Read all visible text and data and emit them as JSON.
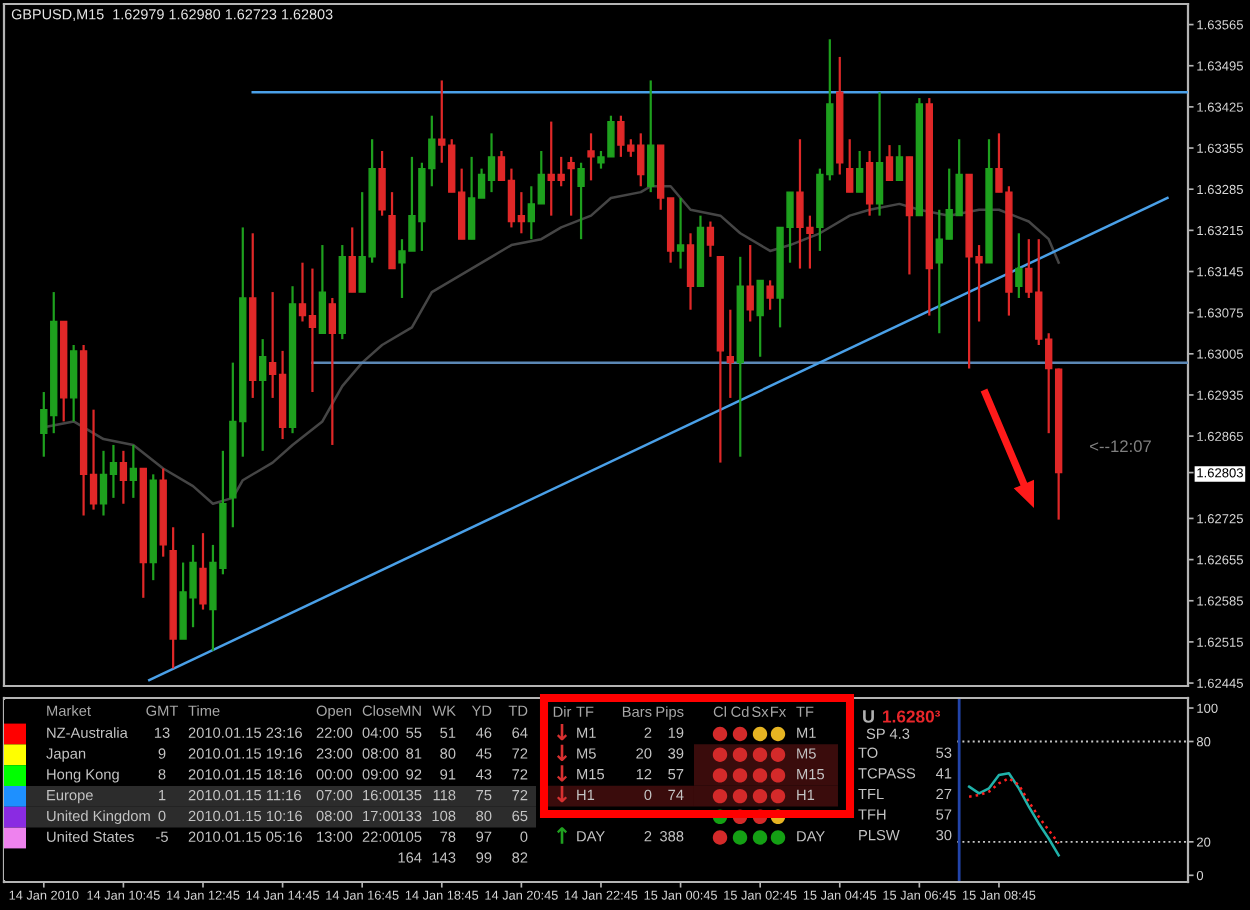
{
  "chart_data": [
    {
      "type": "candlestick",
      "title": "GBPUSD,M15  1.62979 1.62980 1.62723 1.62803",
      "x": [
        "2010-01-14T08:45",
        "2010-01-14T09:00",
        "2010-01-14T09:15",
        "2010-01-14T09:30",
        "2010-01-14T09:45",
        "2010-01-14T10:00",
        "2010-01-14T10:15",
        "2010-01-14T10:30",
        "2010-01-14T10:45",
        "2010-01-14T11:00",
        "2010-01-14T11:15",
        "2010-01-14T11:30",
        "2010-01-14T11:45",
        "2010-01-14T12:00",
        "2010-01-14T12:15",
        "2010-01-14T12:30",
        "2010-01-14T12:45",
        "2010-01-14T13:00",
        "2010-01-14T13:15",
        "2010-01-14T13:30",
        "2010-01-14T13:45",
        "2010-01-14T14:00",
        "2010-01-14T14:15",
        "2010-01-14T14:30",
        "2010-01-14T14:45",
        "2010-01-14T15:00",
        "2010-01-14T15:15",
        "2010-01-14T15:30",
        "2010-01-14T15:45",
        "2010-01-14T16:00",
        "2010-01-14T16:15",
        "2010-01-14T16:30",
        "2010-01-14T16:45",
        "2010-01-14T17:00",
        "2010-01-14T17:15",
        "2010-01-14T17:30",
        "2010-01-14T17:45",
        "2010-01-14T18:00",
        "2010-01-14T18:15",
        "2010-01-14T18:30",
        "2010-01-14T18:45",
        "2010-01-14T19:00",
        "2010-01-14T19:15",
        "2010-01-14T19:30",
        "2010-01-14T19:45",
        "2010-01-14T20:00",
        "2010-01-14T20:15",
        "2010-01-14T20:30",
        "2010-01-14T20:45",
        "2010-01-14T21:00",
        "2010-01-14T21:15",
        "2010-01-14T21:30",
        "2010-01-14T21:45",
        "2010-01-14T22:00",
        "2010-01-14T22:15",
        "2010-01-14T22:30",
        "2010-01-14T22:45",
        "2010-01-14T23:00",
        "2010-01-14T23:15",
        "2010-01-14T23:30",
        "2010-01-14T23:45",
        "2010-01-15T00:00",
        "2010-01-15T00:15",
        "2010-01-15T00:30",
        "2010-01-15T00:45",
        "2010-01-15T01:00",
        "2010-01-15T01:15",
        "2010-01-15T01:30",
        "2010-01-15T01:45",
        "2010-01-15T02:00",
        "2010-01-15T02:15",
        "2010-01-15T02:30",
        "2010-01-15T02:45",
        "2010-01-15T03:00",
        "2010-01-15T03:15",
        "2010-01-15T03:30",
        "2010-01-15T03:45",
        "2010-01-15T04:00",
        "2010-01-15T04:15",
        "2010-01-15T04:30",
        "2010-01-15T04:45",
        "2010-01-15T05:00",
        "2010-01-15T05:15",
        "2010-01-15T05:30",
        "2010-01-15T05:45",
        "2010-01-15T06:00",
        "2010-01-15T06:15",
        "2010-01-15T06:30",
        "2010-01-15T06:45",
        "2010-01-15T07:00",
        "2010-01-15T07:15",
        "2010-01-15T07:30",
        "2010-01-15T07:45",
        "2010-01-15T08:00",
        "2010-01-15T08:15",
        "2010-01-15T08:30",
        "2010-01-15T08:45",
        "2010-01-15T09:00",
        "2010-01-15T09:15",
        "2010-01-15T09:30",
        "2010-01-15T09:45",
        "2010-01-15T10:00",
        "2010-01-15T10:15"
      ],
      "ohlc": [
        [
          1.6287,
          1.6294,
          1.6283,
          1.6291
        ],
        [
          1.629,
          1.6311,
          1.6287,
          1.6306
        ],
        [
          1.6306,
          1.6306,
          1.6289,
          1.6293
        ],
        [
          1.6293,
          1.6302,
          1.6289,
          1.6301
        ],
        [
          1.6301,
          1.6302,
          1.6273,
          1.628
        ],
        [
          1.628,
          1.6291,
          1.6274,
          1.6275
        ],
        [
          1.6275,
          1.6284,
          1.6273,
          1.628
        ],
        [
          1.628,
          1.6285,
          1.6276,
          1.6282
        ],
        [
          1.6282,
          1.6284,
          1.6275,
          1.6279
        ],
        [
          1.6279,
          1.6285,
          1.6276,
          1.6281
        ],
        [
          1.6281,
          1.6281,
          1.6259,
          1.6265
        ],
        [
          1.6265,
          1.628,
          1.6262,
          1.6279
        ],
        [
          1.6279,
          1.6281,
          1.6266,
          1.6268
        ],
        [
          1.6267,
          1.6271,
          1.6247,
          1.6252
        ],
        [
          1.6252,
          1.6265,
          1.6252,
          1.626
        ],
        [
          1.6259,
          1.6268,
          1.6254,
          1.6265
        ],
        [
          1.6264,
          1.627,
          1.6257,
          1.6258
        ],
        [
          1.6257,
          1.6268,
          1.625,
          1.6265
        ],
        [
          1.6264,
          1.6284,
          1.6263,
          1.6275
        ],
        [
          1.6276,
          1.6299,
          1.6271,
          1.6289
        ],
        [
          1.6289,
          1.6322,
          1.6283,
          1.631
        ],
        [
          1.631,
          1.6321,
          1.6293,
          1.6296
        ],
        [
          1.6296,
          1.6303,
          1.6284,
          1.63
        ],
        [
          1.6299,
          1.6311,
          1.6293,
          1.6297
        ],
        [
          1.6297,
          1.6301,
          1.6286,
          1.6288
        ],
        [
          1.6288,
          1.6312,
          1.6287,
          1.6309
        ],
        [
          1.6309,
          1.6316,
          1.6306,
          1.6307
        ],
        [
          1.6307,
          1.6315,
          1.6294,
          1.6305
        ],
        [
          1.6304,
          1.6319,
          1.6304,
          1.6311
        ],
        [
          1.6309,
          1.631,
          1.6285,
          1.6304
        ],
        [
          1.6304,
          1.6319,
          1.6303,
          1.6317
        ],
        [
          1.6317,
          1.6322,
          1.6311,
          1.6311
        ],
        [
          1.6311,
          1.6328,
          1.6311,
          1.6317
        ],
        [
          1.6317,
          1.6337,
          1.6316,
          1.6332
        ],
        [
          1.6332,
          1.6335,
          1.6324,
          1.6325
        ],
        [
          1.6324,
          1.6328,
          1.6315,
          1.6315
        ],
        [
          1.6316,
          1.632,
          1.631,
          1.6318
        ],
        [
          1.6318,
          1.6334,
          1.6318,
          1.6324
        ],
        [
          1.6323,
          1.6333,
          1.6318,
          1.6332
        ],
        [
          1.6332,
          1.6341,
          1.6329,
          1.6337
        ],
        [
          1.6337,
          1.6347,
          1.6333,
          1.6336
        ],
        [
          1.6336,
          1.6337,
          1.6328,
          1.6328
        ],
        [
          1.6328,
          1.6332,
          1.632,
          1.632
        ],
        [
          1.632,
          1.6334,
          1.632,
          1.6327
        ],
        [
          1.6327,
          1.6332,
          1.6327,
          1.6331
        ],
        [
          1.633,
          1.6338,
          1.6328,
          1.6334
        ],
        [
          1.6334,
          1.6335,
          1.633,
          1.633
        ],
        [
          1.633,
          1.6332,
          1.6322,
          1.6323
        ],
        [
          1.6324,
          1.6328,
          1.6321,
          1.6323
        ],
        [
          1.6323,
          1.6329,
          1.632,
          1.6326
        ],
        [
          1.6326,
          1.6335,
          1.6326,
          1.6331
        ],
        [
          1.6331,
          1.634,
          1.6324,
          1.633
        ],
        [
          1.6331,
          1.6334,
          1.6329,
          1.633
        ],
        [
          1.6333,
          1.6334,
          1.6324,
          1.6332
        ],
        [
          1.6329,
          1.6333,
          1.632,
          1.6332
        ],
        [
          1.6335,
          1.6338,
          1.633,
          1.6334
        ],
        [
          1.6333,
          1.6335,
          1.6332,
          1.6334
        ],
        [
          1.6334,
          1.6341,
          1.6334,
          1.634
        ],
        [
          1.634,
          1.6341,
          1.6334,
          1.6336
        ],
        [
          1.6336,
          1.6337,
          1.6334,
          1.6335
        ],
        [
          1.6336,
          1.6338,
          1.6329,
          1.6331
        ],
        [
          1.6329,
          1.6347,
          1.6328,
          1.6336
        ],
        [
          1.6336,
          1.6336,
          1.6325,
          1.6327
        ],
        [
          1.6327,
          1.6327,
          1.6316,
          1.6318
        ],
        [
          1.6318,
          1.6327,
          1.6315,
          1.6319
        ],
        [
          1.6319,
          1.6321,
          1.6308,
          1.6312
        ],
        [
          1.6312,
          1.6324,
          1.6312,
          1.6322
        ],
        [
          1.6322,
          1.6323,
          1.6317,
          1.6319
        ],
        [
          1.6317,
          1.6317,
          1.6282,
          1.6301
        ],
        [
          1.63,
          1.6308,
          1.6293,
          1.6299
        ],
        [
          1.6299,
          1.6317,
          1.6283,
          1.6312
        ],
        [
          1.6312,
          1.6319,
          1.6306,
          1.6308
        ],
        [
          1.6307,
          1.6313,
          1.63,
          1.6313
        ],
        [
          1.6312,
          1.6313,
          1.6308,
          1.631
        ],
        [
          1.631,
          1.6322,
          1.6305,
          1.6322
        ],
        [
          1.6322,
          1.6328,
          1.6316,
          1.6328
        ],
        [
          1.6328,
          1.6337,
          1.6315,
          1.6322
        ],
        [
          1.6322,
          1.6324,
          1.6315,
          1.6321
        ],
        [
          1.6322,
          1.6332,
          1.6318,
          1.6331
        ],
        [
          1.6331,
          1.6354,
          1.633,
          1.6343
        ],
        [
          1.6345,
          1.6351,
          1.6331,
          1.6333
        ],
        [
          1.6332,
          1.6337,
          1.6328,
          1.6328
        ],
        [
          1.6328,
          1.6335,
          1.6328,
          1.6332
        ],
        [
          1.6333,
          1.6335,
          1.6324,
          1.6326
        ],
        [
          1.6326,
          1.6345,
          1.6324,
          1.6333
        ],
        [
          1.6334,
          1.6336,
          1.633,
          1.633
        ],
        [
          1.633,
          1.6336,
          1.633,
          1.6334
        ],
        [
          1.6334,
          1.6334,
          1.6314,
          1.6324
        ],
        [
          1.6324,
          1.6344,
          1.6324,
          1.6343
        ],
        [
          1.6343,
          1.6344,
          1.6307,
          1.6315
        ],
        [
          1.6316,
          1.6325,
          1.6304,
          1.632
        ],
        [
          1.632,
          1.6332,
          1.632,
          1.6325
        ],
        [
          1.6324,
          1.6337,
          1.6324,
          1.6331
        ],
        [
          1.6331,
          1.6331,
          1.6298,
          1.6317
        ],
        [
          1.6317,
          1.6319,
          1.6306,
          1.6316
        ],
        [
          1.6316,
          1.6337,
          1.6316,
          1.6332
        ],
        [
          1.6332,
          1.6338,
          1.6328,
          1.6328
        ],
        [
          1.6328,
          1.6329,
          1.6307,
          1.6311
        ],
        [
          1.6312,
          1.6321,
          1.631,
          1.6315
        ],
        [
          1.6315,
          1.632,
          1.631,
          1.6311
        ],
        [
          1.6311,
          1.632,
          1.6302,
          1.6303
        ],
        [
          1.6303,
          1.6304,
          1.6287,
          1.6298
        ],
        [
          1.62979,
          1.6298,
          1.62723,
          1.62803
        ]
      ],
      "colors": [
        "#1ea01e",
        "#1ea01e",
        "#e02828",
        "#1ea01e",
        "#e02828",
        "#e02828",
        "#1ea01e",
        "#1ea01e",
        "#e02828",
        "#1ea01e",
        "#e02828",
        "#1ea01e",
        "#e02828",
        "#e02828",
        "#1ea01e",
        "#1ea01e",
        "#e02828",
        "#1ea01e",
        "#1ea01e",
        "#1ea01e",
        "#1ea01e",
        "#e02828",
        "#1ea01e",
        "#e02828",
        "#e02828",
        "#1ea01e",
        "#e02828",
        "#e02828",
        "#1ea01e",
        "#e02828",
        "#1ea01e",
        "#e02828",
        "#1ea01e",
        "#1ea01e",
        "#e02828",
        "#e02828",
        "#1ea01e",
        "#1ea01e",
        "#1ea01e",
        "#1ea01e",
        "#e02828",
        "#e02828",
        "#e02828",
        "#1ea01e",
        "#1ea01e",
        "#1ea01e",
        "#e02828",
        "#e02828",
        "#e02828",
        "#1ea01e",
        "#1ea01e",
        "#e02828",
        "#e02828",
        "#e02828",
        "#1ea01e",
        "#e02828",
        "#1ea01e",
        "#1ea01e",
        "#e02828",
        "#e02828",
        "#e02828",
        "#1ea01e",
        "#e02828",
        "#e02828",
        "#1ea01e",
        "#e02828",
        "#1ea01e",
        "#e02828",
        "#e02828",
        "#e02828",
        "#1ea01e",
        "#e02828",
        "#1ea01e",
        "#e02828",
        "#1ea01e",
        "#1ea01e",
        "#e02828",
        "#e02828",
        "#1ea01e",
        "#1ea01e",
        "#e02828",
        "#e02828",
        "#1ea01e",
        "#e02828",
        "#1ea01e",
        "#e02828",
        "#1ea01e",
        "#e02828",
        "#1ea01e",
        "#e02828",
        "#1ea01e",
        "#1ea01e",
        "#1ea01e",
        "#e02828",
        "#e02828",
        "#1ea01e",
        "#e02828",
        "#e02828",
        "#1ea01e",
        "#e02828",
        "#e02828",
        "#e02828",
        "#e02828"
      ],
      "series": [
        {
          "type": "line",
          "color": "#454545",
          "x": [
            "2010-01-14T08:45",
            "2010-01-14T09:30",
            "2010-01-14T10:15",
            "2010-01-14T11:00",
            "2010-01-14T11:45",
            "2010-01-14T12:30",
            "2010-01-14T13:00",
            "2010-01-14T13:30",
            "2010-01-14T13:45",
            "2010-01-14T14:30",
            "2010-01-14T15:00",
            "2010-01-14T15:45",
            "2010-01-14T16:15",
            "2010-01-14T16:45",
            "2010-01-14T17:15",
            "2010-01-14T18:00",
            "2010-01-14T18:30",
            "2010-01-14T19:00",
            "2010-01-14T19:30",
            "2010-01-14T20:00",
            "2010-01-14T20:30",
            "2010-01-14T21:15",
            "2010-01-14T21:45",
            "2010-01-14T22:30",
            "2010-01-14T23:00",
            "2010-01-14T23:45",
            "2010-01-15T00:00",
            "2010-01-15T00:30",
            "2010-01-15T01:00",
            "2010-01-15T01:45",
            "2010-01-15T02:15",
            "2010-01-15T03:00",
            "2010-01-15T03:30",
            "2010-01-15T04:15",
            "2010-01-15T05:00",
            "2010-01-15T05:30",
            "2010-01-15T06:15",
            "2010-01-15T06:45",
            "2010-01-15T07:30",
            "2010-01-15T08:15",
            "2010-01-15T08:45",
            "2010-01-15T09:30",
            "2010-01-15T10:00",
            "2010-01-15T10:15"
          ],
          "values": [
            1.6288,
            1.6289,
            1.6286,
            1.6285,
            1.6281,
            1.6278,
            1.6275,
            1.6276,
            1.6279,
            1.6282,
            1.6285,
            1.6289,
            1.6295,
            1.6299,
            1.6302,
            1.6305,
            1.6311,
            1.6313,
            1.6315,
            1.6317,
            1.6319,
            1.632,
            1.6322,
            1.6324,
            1.6327,
            1.6328,
            1.6329,
            1.6329,
            1.6325,
            1.6324,
            1.6321,
            1.6318,
            1.6319,
            1.6321,
            1.6324,
            1.6325,
            1.6326,
            1.6325,
            1.6324,
            1.6325,
            1.6325,
            1.6323,
            1.632,
            1.6316
          ]
        },
        {
          "type": "line",
          "color": "#4aa0e8",
          "x": [
            "2010-01-14T14:00",
            "2010-01-15T13:30"
          ],
          "values": [
            1.6345,
            1.6345
          ]
        },
        {
          "type": "line",
          "color": "#5b87b5",
          "x": [
            "2010-01-14T15:30",
            "2010-01-15T13:30"
          ],
          "values": [
            1.6299,
            1.6299
          ]
        },
        {
          "type": "line",
          "color": "#4aa0e8",
          "x": [
            "2010-01-14T11:24",
            "2010-01-15T12:59"
          ],
          "values": [
            1.6245,
            1.6327
          ]
        }
      ],
      "xlim": [
        "2010-01-14T07:45",
        "2010-01-15T13:30"
      ],
      "ylim": [
        1.6244,
        1.636
      ],
      "yticks": [
        1.63565,
        1.63495,
        1.63425,
        1.63355,
        1.63285,
        1.63215,
        1.63145,
        1.63075,
        1.63005,
        1.62935,
        1.62865,
        1.62803,
        1.62725,
        1.62655,
        1.62585,
        1.62515,
        1.62445
      ],
      "annotations": [
        "<--12:07"
      ],
      "tick_labels": "y"
    },
    {
      "type": "other",
      "categories": [
        "Market",
        "GMT",
        "Time",
        "Open",
        "Close",
        "MN",
        "WK",
        "YD",
        "TD"
      ],
      "y_categories": [
        "NZ-Australia",
        "Japan",
        "Hong Kong",
        "Europe",
        "United Kingdom",
        "United States",
        null
      ],
      "cell_labels": [
        [
          "13",
          "2010.01.15 23:16",
          "22:00",
          "04:00",
          "55",
          "51",
          "46",
          "64"
        ],
        [
          "9",
          "2010.01.15 19:16",
          "23:00",
          "08:00",
          "81",
          "80",
          "45",
          "72"
        ],
        [
          "8",
          "2010.01.15 18:16",
          "00:00",
          "09:00",
          "92",
          "91",
          "43",
          "72"
        ],
        [
          "1",
          "2010.01.15 11:16",
          "07:00",
          "16:00",
          "135",
          "118",
          "75",
          "72"
        ],
        [
          "0",
          "2010.01.15 10:16",
          "08:00",
          "17:00",
          "133",
          "108",
          "80",
          "65"
        ],
        [
          "-5",
          "2010.01.15 05:16",
          "13:00",
          "22:00",
          "105",
          "78",
          "97",
          "0"
        ],
        [
          null,
          null,
          null,
          null,
          "164",
          "143",
          "99",
          "82"
        ]
      ],
      "colors": [
        [
          "#ff0000",
          null
        ],
        [
          "#ffff00",
          null
        ],
        [
          "#00ff00",
          null
        ],
        [
          "#1e90ff",
          "#2c2c2c"
        ],
        [
          "#8a2be2",
          "#2c2c2c"
        ],
        [
          "#ee82ee",
          null
        ],
        [
          null,
          null
        ]
      ]
    },
    {
      "type": "other",
      "categories": [
        "Dir",
        "TF",
        "Bars",
        "Pips",
        "Cl",
        "Cd",
        "Sx",
        "Fx",
        "TF"
      ],
      "y_categories": [
        "M1",
        "M5",
        "M15",
        "H1",
        null,
        "DAY"
      ],
      "cell_labels": [
        [
          "↓",
          "2",
          "19",
          null,
          null,
          null,
          null,
          "M1"
        ],
        [
          "↓",
          "20",
          "39",
          null,
          null,
          null,
          null,
          "M5"
        ],
        [
          "↓",
          "12",
          "57",
          null,
          null,
          null,
          null,
          "M15"
        ],
        [
          "↓",
          "0",
          "74",
          null,
          null,
          null,
          null,
          "H1"
        ],
        [
          null,
          null,
          null,
          null,
          null,
          null,
          null,
          null
        ],
        [
          "↑",
          "2",
          "388",
          null,
          null,
          null,
          null,
          "DAY"
        ]
      ],
      "colors": [
        [
          null,
          null,
          "#d83030",
          null,
          null,
          "#d42a2a",
          "#d42a2a",
          "#e6b422",
          "#e6b422",
          null
        ],
        [
          null,
          "#3a0c0c",
          "#d83030",
          null,
          null,
          "#d42a2a",
          "#d42a2a",
          "#d42a2a",
          "#d42a2a",
          null
        ],
        [
          null,
          "#3a0c0c",
          "#d83030",
          null,
          null,
          "#d42a2a",
          "#d42a2a",
          "#d42a2a",
          "#d42a2a",
          null
        ],
        [
          "#3a0c0c",
          "#3a0c0c",
          "#d83030",
          null,
          null,
          "#d42a2a",
          "#d42a2a",
          "#d42a2a",
          "#d42a2a",
          null
        ],
        [
          null,
          null,
          null,
          null,
          null,
          "#14a014",
          "#d42a2a",
          "#d42a2a",
          "#e6b422",
          null
        ],
        [
          null,
          null,
          "#20a020",
          null,
          null,
          "#d42a2a",
          "#14a014",
          "#14a014",
          "#14a014",
          null
        ]
      ]
    },
    {
      "type": "other",
      "title": "U",
      "subtitle": "1.6280³",
      "annotations": [
        "SP 4.3"
      ],
      "y_categories": [
        "TO",
        "TCPASS",
        "TFL",
        "TFH",
        "PLSW"
      ],
      "cell_labels": [
        [
          "53"
        ],
        [
          "41"
        ],
        [
          "27"
        ],
        [
          "57"
        ],
        [
          "30"
        ]
      ]
    },
    {
      "type": "line",
      "x": [
        "2010-01-15T08:00",
        "2010-01-15T08:15",
        "2010-01-15T08:30",
        "2010-01-15T08:45",
        "2010-01-15T09:00",
        "2010-01-15T09:15",
        "2010-01-15T09:30",
        "2010-01-15T09:45",
        "2010-01-15T10:00",
        "2010-01-15T10:15"
      ],
      "series": [
        {
          "color": "#20b2aa",
          "values": [
            53,
            49,
            52,
            60,
            61,
            52,
            41,
            31,
            22,
            12
          ]
        },
        {
          "color": "#ff2020",
          "line_style": "dotted",
          "values": [
            47,
            48,
            50,
            55,
            58,
            54,
            44,
            35,
            27,
            19
          ]
        }
      ],
      "xlim": [
        "2010-01-14T07:45",
        "2010-01-15T13:30"
      ],
      "xticks": [
        {
          "value": "2010-01-14T08:45",
          "label": "14 Jan 2010"
        },
        {
          "value": "2010-01-14T10:45",
          "label": "14 Jan 10:45"
        },
        {
          "value": "2010-01-14T12:45",
          "label": "14 Jan 12:45"
        },
        {
          "value": "2010-01-14T14:45",
          "label": "14 Jan 14:45"
        },
        {
          "value": "2010-01-14T16:45",
          "label": "14 Jan 16:45"
        },
        {
          "value": "2010-01-14T18:45",
          "label": "14 Jan 18:45"
        },
        {
          "value": "2010-01-14T20:45",
          "label": "14 Jan 20:45"
        },
        {
          "value": "2010-01-14T22:45",
          "label": "14 Jan 22:45"
        },
        {
          "value": "2010-01-15T00:45",
          "label": "15 Jan 00:45"
        },
        {
          "value": "2010-01-15T02:45",
          "label": "15 Jan 02:45"
        },
        {
          "value": "2010-01-15T04:45",
          "label": "15 Jan 04:45"
        },
        {
          "value": "2010-01-15T06:45",
          "label": "15 Jan 06:45"
        },
        {
          "value": "2010-01-15T08:45",
          "label": "15 Jan 08:45"
        }
      ],
      "ylim": [
        -4,
        106
      ],
      "yticks": [
        0,
        20,
        80,
        100
      ],
      "ref_lines": [
        {
          "axis": "y",
          "value": 80,
          "color": "#c8c8c8",
          "line_style": "dotted"
        },
        {
          "axis": "y",
          "value": 20,
          "color": "#c8c8c8",
          "line_style": "dotted"
        },
        {
          "axis": "x",
          "value": "2010-01-15T07:45",
          "color": "#2244aa",
          "line_style": "solid"
        }
      ]
    }
  ]
}
